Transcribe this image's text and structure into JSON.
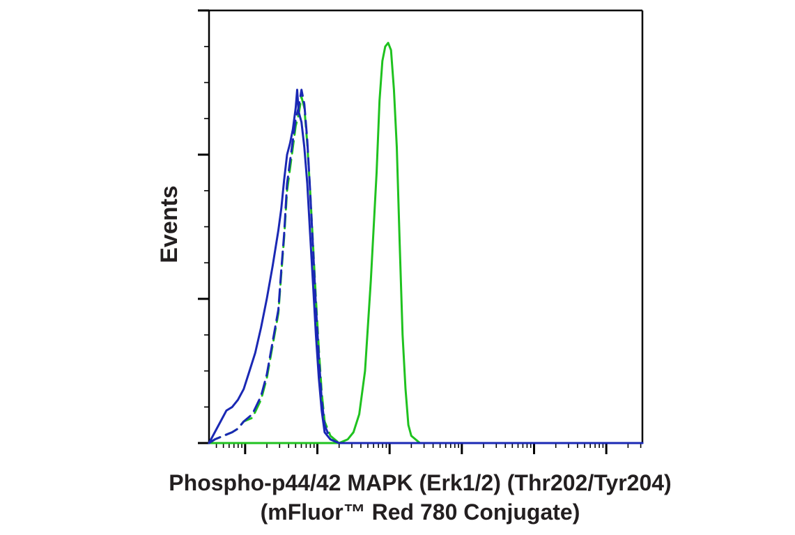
{
  "chart_data": {
    "type": "line",
    "title": "",
    "xlabel_lines": [
      "Phospho-p44/42 MAPK (Erk1/2) (Thr202/Tyr204)",
      "(mFluor™ Red 780 Conjugate)"
    ],
    "ylabel": "Events",
    "xscale": "log",
    "xlim": [
      0.5,
      2.0
    ],
    "ylim": [
      0,
      120
    ],
    "grid": false,
    "legend": "none",
    "tick_labels_shown": false,
    "series": [
      {
        "color": "#1fc21f",
        "dash": "dashed",
        "points": [
          [
            0.5,
            0
          ],
          [
            0.52,
            1
          ],
          [
            0.55,
            2
          ],
          [
            0.58,
            3
          ],
          [
            0.6,
            4
          ],
          [
            0.62,
            6
          ],
          [
            0.65,
            7
          ],
          [
            0.68,
            12
          ],
          [
            0.7,
            18
          ],
          [
            0.72,
            27
          ],
          [
            0.74,
            36
          ],
          [
            0.75,
            47
          ],
          [
            0.76,
            57
          ],
          [
            0.77,
            70
          ],
          [
            0.79,
            82
          ],
          [
            0.8,
            88
          ],
          [
            0.81,
            91
          ],
          [
            0.82,
            96
          ],
          [
            0.83,
            93
          ],
          [
            0.84,
            83
          ],
          [
            0.85,
            70
          ],
          [
            0.86,
            55
          ],
          [
            0.87,
            40
          ],
          [
            0.88,
            26
          ],
          [
            0.89,
            14
          ],
          [
            0.9,
            6
          ],
          [
            0.92,
            2
          ],
          [
            0.95,
            0
          ],
          [
            1.0,
            0
          ],
          [
            1.5,
            0
          ],
          [
            2.0,
            0
          ]
        ]
      },
      {
        "color": "#1fc21f",
        "dash": "solid",
        "points": [
          [
            0.5,
            0
          ],
          [
            0.8,
            0
          ],
          [
            0.9,
            0
          ],
          [
            0.95,
            0
          ],
          [
            0.98,
            1
          ],
          [
            1.0,
            3
          ],
          [
            1.02,
            8
          ],
          [
            1.04,
            20
          ],
          [
            1.06,
            45
          ],
          [
            1.08,
            75
          ],
          [
            1.09,
            95
          ],
          [
            1.1,
            106
          ],
          [
            1.11,
            110
          ],
          [
            1.12,
            111
          ],
          [
            1.13,
            109
          ],
          [
            1.14,
            98
          ],
          [
            1.15,
            82
          ],
          [
            1.16,
            55
          ],
          [
            1.17,
            30
          ],
          [
            1.18,
            15
          ],
          [
            1.19,
            5
          ],
          [
            1.2,
            2
          ],
          [
            1.23,
            0
          ],
          [
            1.4,
            0
          ],
          [
            1.7,
            0
          ],
          [
            2.0,
            0
          ]
        ]
      },
      {
        "color": "#1a28b4",
        "dash": "dashed",
        "points": [
          [
            0.5,
            0
          ],
          [
            0.52,
            1
          ],
          [
            0.55,
            2
          ],
          [
            0.58,
            3
          ],
          [
            0.6,
            4
          ],
          [
            0.62,
            6
          ],
          [
            0.65,
            8
          ],
          [
            0.68,
            13
          ],
          [
            0.7,
            19
          ],
          [
            0.72,
            28
          ],
          [
            0.74,
            37
          ],
          [
            0.75,
            48
          ],
          [
            0.76,
            58
          ],
          [
            0.77,
            72
          ],
          [
            0.79,
            84
          ],
          [
            0.8,
            90
          ],
          [
            0.81,
            93
          ],
          [
            0.82,
            98
          ],
          [
            0.83,
            94
          ],
          [
            0.84,
            84
          ],
          [
            0.85,
            70
          ],
          [
            0.86,
            54
          ],
          [
            0.87,
            38
          ],
          [
            0.88,
            24
          ],
          [
            0.89,
            12
          ],
          [
            0.9,
            5
          ],
          [
            0.92,
            1
          ],
          [
            0.95,
            0
          ],
          [
            1.2,
            0
          ],
          [
            2.0,
            0
          ]
        ]
      },
      {
        "color": "#1a28b4",
        "dash": "solid",
        "points": [
          [
            0.5,
            0
          ],
          [
            0.52,
            3
          ],
          [
            0.54,
            6
          ],
          [
            0.56,
            9
          ],
          [
            0.58,
            10
          ],
          [
            0.6,
            12
          ],
          [
            0.62,
            15
          ],
          [
            0.64,
            20
          ],
          [
            0.66,
            25
          ],
          [
            0.68,
            32
          ],
          [
            0.7,
            40
          ],
          [
            0.72,
            49
          ],
          [
            0.74,
            59
          ],
          [
            0.75,
            65
          ],
          [
            0.76,
            73
          ],
          [
            0.77,
            80
          ],
          [
            0.78,
            83
          ],
          [
            0.79,
            87
          ],
          [
            0.8,
            93
          ],
          [
            0.805,
            98
          ],
          [
            0.81,
            92
          ],
          [
            0.82,
            89
          ],
          [
            0.83,
            82
          ],
          [
            0.84,
            72
          ],
          [
            0.85,
            58
          ],
          [
            0.86,
            44
          ],
          [
            0.87,
            30
          ],
          [
            0.88,
            18
          ],
          [
            0.89,
            9
          ],
          [
            0.9,
            3
          ],
          [
            0.92,
            1
          ],
          [
            0.95,
            0
          ],
          [
            1.3,
            0
          ],
          [
            2.0,
            0
          ]
        ]
      }
    ]
  }
}
